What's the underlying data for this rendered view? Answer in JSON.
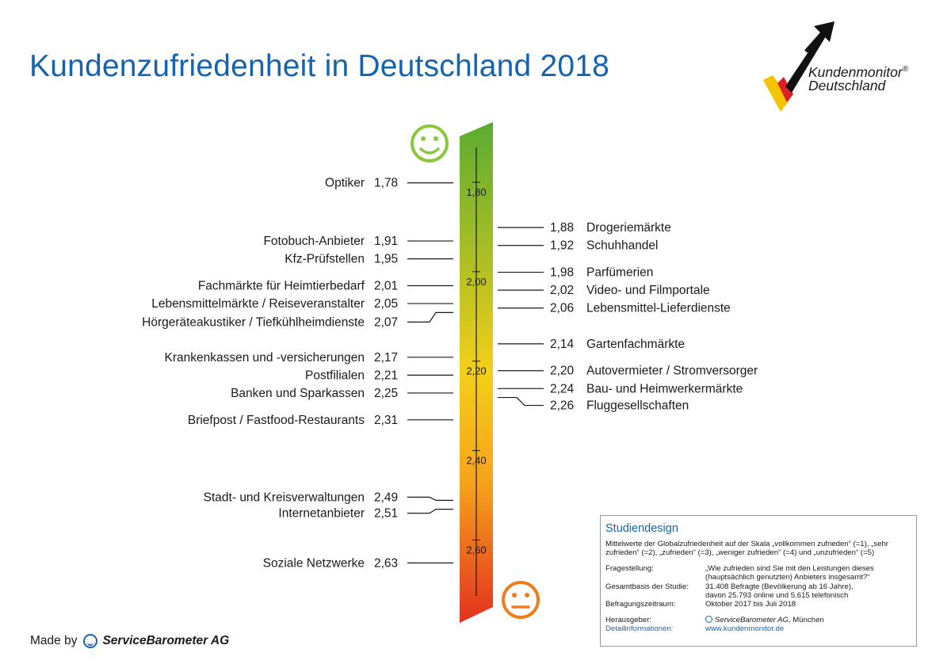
{
  "title": "Kundenzufriedenheit in Deutschland 2018",
  "logo": {
    "line1": "Kundenmonitor",
    "registered": "®",
    "line2": "Deutschland"
  },
  "icons": {
    "top": "smiley-happy-icon",
    "bottom": "smiley-neutral-icon"
  },
  "colors": {
    "title": "#1564b0",
    "bar_top": "#5aac32",
    "bar_mid": "#f3cf1a",
    "bar_bottom": "#e2311e",
    "happy": "#8cc63f",
    "neutral": "#ef7d1a"
  },
  "chart_data": {
    "type": "scale",
    "scale_ticks": [
      "1,80",
      "2,00",
      "2,20",
      "2,40",
      "2,60"
    ],
    "scale_tick_values": [
      1.8,
      2.0,
      2.2,
      2.4,
      2.6
    ],
    "left": [
      {
        "label": "Optiker",
        "value_text": "1,78",
        "value": 1.78
      },
      {
        "label": "Fotobuch-Anbieter",
        "value_text": "1,91",
        "value": 1.91
      },
      {
        "label": "Kfz-Prüfstellen",
        "value_text": "1,95",
        "value": 1.95
      },
      {
        "label": "Fachmärkte für Heimtierbedarf",
        "value_text": "2,01",
        "value": 2.01
      },
      {
        "label": "Lebensmittelmärkte / Reiseveranstalter",
        "value_text": "2,05",
        "value": 2.05
      },
      {
        "label": "Hörgeräteakustiker / Tiefkühlheimdienste",
        "value_text": "2,07",
        "value": 2.07
      },
      {
        "label": "Krankenkassen und -versicherungen",
        "value_text": "2,17",
        "value": 2.17
      },
      {
        "label": "Postfilialen",
        "value_text": "2,21",
        "value": 2.21
      },
      {
        "label": "Banken und Sparkassen",
        "value_text": "2,25",
        "value": 2.25
      },
      {
        "label": "Briefpost / Fastfood-Restaurants",
        "value_text": "2,31",
        "value": 2.31
      },
      {
        "label": "Stadt- und Kreisverwaltungen",
        "value_text": "2,49",
        "value": 2.49
      },
      {
        "label": "Internetanbieter",
        "value_text": "2,51",
        "value": 2.51
      },
      {
        "label": "Soziale Netzwerke",
        "value_text": "2,63",
        "value": 2.63
      }
    ],
    "right": [
      {
        "label": "Drogeriemärkte",
        "value_text": "1,88",
        "value": 1.88
      },
      {
        "label": "Schuhhandel",
        "value_text": "1,92",
        "value": 1.92
      },
      {
        "label": "Parfümerien",
        "value_text": "1,98",
        "value": 1.98
      },
      {
        "label": "Video- und Filmportale",
        "value_text": "2,02",
        "value": 2.02
      },
      {
        "label": "Lebensmittel-Lieferdienste",
        "value_text": "2,06",
        "value": 2.06
      },
      {
        "label": "Gartenfachmärkte",
        "value_text": "2,14",
        "value": 2.14
      },
      {
        "label": "Autovermieter / Stromversorger",
        "value_text": "2,20",
        "value": 2.2
      },
      {
        "label": "Bau- und Heimwerkermärkte",
        "value_text": "2,24",
        "value": 2.24
      },
      {
        "label": "Fluggesellschaften",
        "value_text": "2,26",
        "value": 2.26
      }
    ]
  },
  "study": {
    "heading": "Studiendesign",
    "description": "Mittelwerte der Globalzufriedenheit auf der Skala „vollkommen zufrieden“ (=1), „sehr zufrieden“ (=2), „zufrieden“ (=3), „weniger zufrieden“ (=4) und „unzufrieden“ (=5)",
    "q_label": "Fragestellung:",
    "q_value": "„Wie zufrieden sind Sie mit den Leistungen dieses (hauptsächlich genutzten) Anbieters insgesamt?“",
    "base_label": "Gesamtbasis der Studie:",
    "base_value_1": "31.408 Befragte (Bevölkerung ab 16 Jahre),",
    "base_value_2": "davon 25.793 online und 5.615 telefonisch",
    "period_label": "Befragungszeitraum:",
    "period_value": "Oktober 2017 bis Juli 2018",
    "publisher_label": "Herausgeber:",
    "publisher_brand": "ServiceBarometer AG",
    "publisher_city": ", München",
    "details_label": "Detailinformationen:",
    "details_value": "www.kundenmonitor.de"
  },
  "footer": {
    "made_by": "Made by",
    "brand": "ServiceBarometer AG"
  }
}
